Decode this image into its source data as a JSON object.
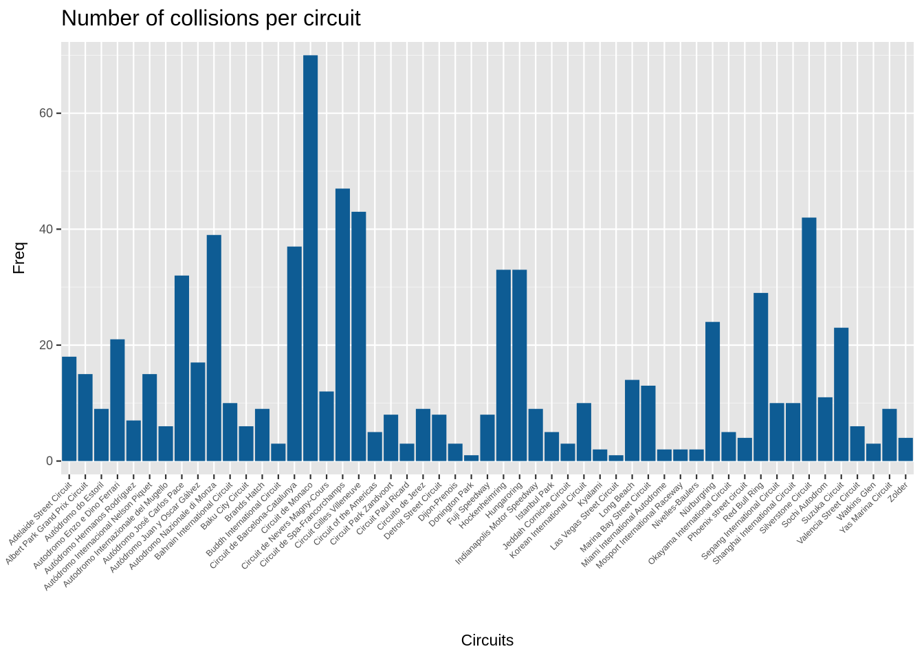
{
  "chart_data": {
    "type": "bar",
    "title": "Number of collisions per circuit",
    "xlabel": "Circuits",
    "ylabel": "Freq",
    "ylim": [
      -2.3,
      72.3
    ],
    "yticks": [
      0,
      20,
      40,
      60
    ],
    "grid": true,
    "bar_color": "#0E5C94",
    "panel_color": "#E5E5E5",
    "categories": [
      "Adelaide Street Circuit",
      "Albert Park Grand Prix Circuit",
      "Autódromo do Estoril",
      "Autodromo Enzo e Dino Ferrari",
      "Autódromo Hermanos Rodríguez",
      "Autódromo Internacional Nelson Piquet",
      "Autodromo Internazionale del Mugello",
      "Autódromo José Carlos Pace",
      "Autódromo Juan y Oscar Gálvez",
      "Autodromo Nazionale di Monza",
      "Bahrain International Circuit",
      "Baku City Circuit",
      "Brands Hatch",
      "Buddh International Circuit",
      "Circuit de Barcelona-Catalunya",
      "Circuit de Monaco",
      "Circuit de Nevers Magny-Cours",
      "Circuit de Spa-Francorchamps",
      "Circuit Gilles Villeneuve",
      "Circuit of the Americas",
      "Circuit Park Zandvoort",
      "Circuit Paul Ricard",
      "Circuito de Jerez",
      "Detroit Street Circuit",
      "Dijon-Prenois",
      "Donington Park",
      "Fuji Speedway",
      "Hockenheimring",
      "Hungaroring",
      "Indianapolis Motor Speedway",
      "Istanbul Park",
      "Jeddah Corniche Circuit",
      "Korean International Circuit",
      "Kyalami",
      "Las Vegas Street Circuit",
      "Long Beach",
      "Marina Bay Street Circuit",
      "Miami International Autodrome",
      "Mosport International Raceway",
      "Nivelles-Baulers",
      "Nürburgring",
      "Okayama International Circuit",
      "Phoenix street circuit",
      "Red Bull Ring",
      "Sepang International Circuit",
      "Shanghai International Circuit",
      "Silverstone Circuit",
      "Sochi Autodrom",
      "Suzuka Circuit",
      "Valencia Street Circuit",
      "Watkins Glen",
      "Yas Marina Circuit",
      "Zolder"
    ],
    "values": [
      18,
      15,
      9,
      21,
      7,
      15,
      6,
      32,
      17,
      39,
      10,
      6,
      9,
      3,
      37,
      70,
      12,
      47,
      43,
      5,
      8,
      3,
      9,
      8,
      3,
      1,
      8,
      33,
      33,
      9,
      5,
      3,
      10,
      2,
      1,
      14,
      13,
      2,
      2,
      2,
      24,
      5,
      4,
      29,
      10,
      10,
      42,
      11,
      23,
      6,
      3,
      9,
      4
    ]
  }
}
